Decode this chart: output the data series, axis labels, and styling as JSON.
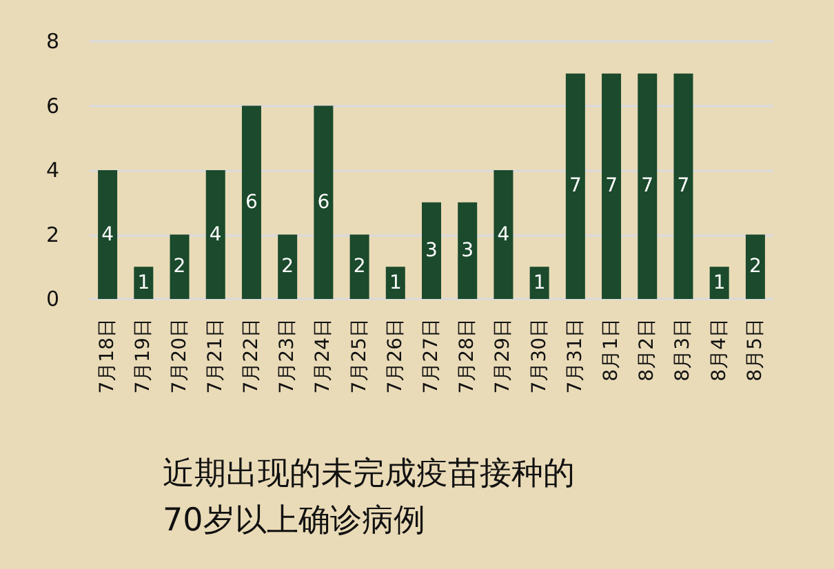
{
  "chart_data": {
    "type": "bar",
    "title": "近期出现的未完成疫苗接种的\n70岁以上确诊病例",
    "categories": [
      "7月18日",
      "7月19日",
      "7月20日",
      "7月21日",
      "7月22日",
      "7月23日",
      "7月24日",
      "7月25日",
      "7月26日",
      "7月27日",
      "7月28日",
      "7月29日",
      "7月30日",
      "7月31日",
      "8月1日",
      "8月2日",
      "8月3日",
      "8月4日",
      "8月5日"
    ],
    "values": [
      4,
      1,
      2,
      4,
      6,
      2,
      6,
      2,
      1,
      3,
      3,
      4,
      1,
      7,
      7,
      7,
      7,
      1,
      2
    ],
    "color": "#1b4a2c",
    "ylim": [
      0,
      8
    ],
    "yticks": [
      0,
      2,
      4,
      6,
      8
    ],
    "grid": "y",
    "data_labels": true
  }
}
